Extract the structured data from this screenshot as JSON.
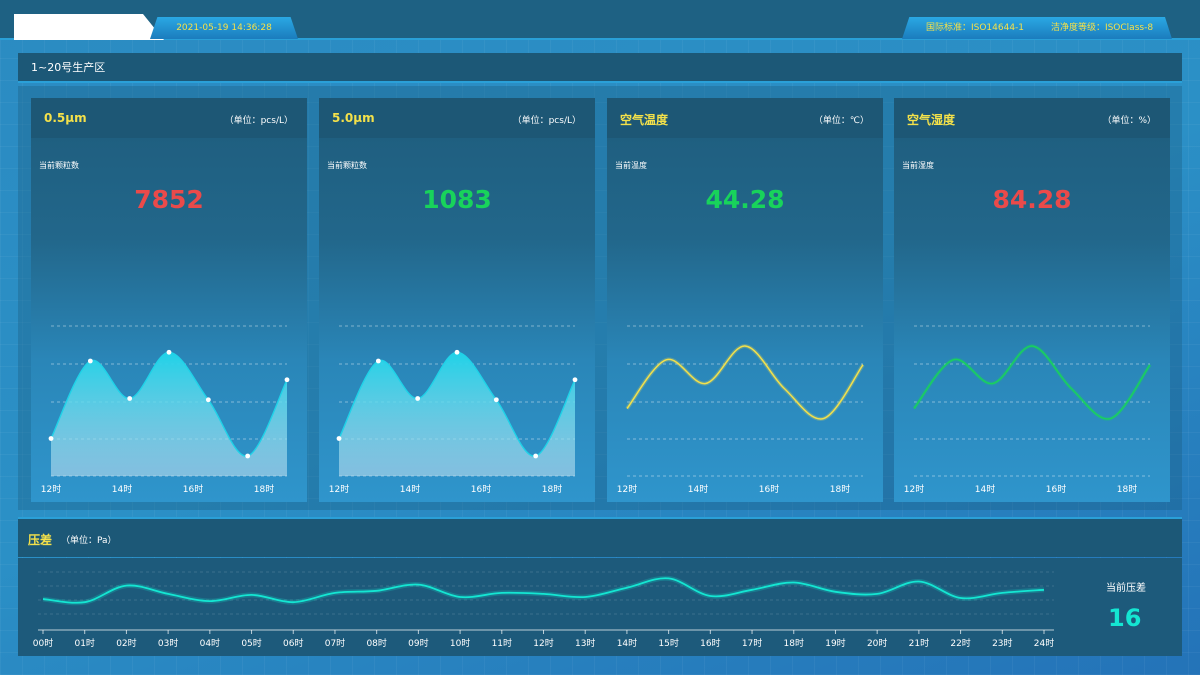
{
  "header": {
    "datetime": "2021-05-19 14:36:28",
    "standard": "国际标准：ISO14644-1",
    "clean_class": "洁净度等级：ISOClass-8"
  },
  "zone": {
    "title": "1~20号生产区"
  },
  "colors": {
    "yellow": "#f4e14a",
    "red": "#ea4a4a",
    "green": "#18d35b",
    "cyan": "#14e6d2",
    "area_cyan": "#1fd2e8"
  },
  "cards": [
    {
      "title": "0.5μm",
      "unit": "（单位：pcs/L）",
      "label": "当前颗粒数",
      "value": "7852",
      "value_color": "#ea4a4a",
      "style": "area"
    },
    {
      "title": "5.0μm",
      "unit": "（单位：pcs/L）",
      "label": "当前颗粒数",
      "value": "1083",
      "value_color": "#18d35b",
      "style": "area"
    },
    {
      "title": "空气温度",
      "unit": "（单位：℃）",
      "label": "当前温度",
      "value": "44.28",
      "value_color": "#18d35b",
      "style": "line",
      "line_color": "#f4e14a"
    },
    {
      "title": "空气湿度",
      "unit": "（单位：%）",
      "label": "当前湿度",
      "value": "84.28",
      "value_color": "#ea4a4a",
      "style": "line",
      "line_color": "#18d35b"
    }
  ],
  "chart_data": [
    {
      "type": "area",
      "series": [
        {
          "values": [
            30,
            92,
            62,
            99,
            61,
            16,
            77
          ]
        }
      ],
      "x_ticks": [
        "12时",
        "14时",
        "16时",
        "18时"
      ],
      "ylim": [
        0,
        120
      ]
    },
    {
      "type": "area",
      "series": [
        {
          "values": [
            30,
            92,
            62,
            99,
            61,
            16,
            77
          ]
        }
      ],
      "x_ticks": [
        "12时",
        "14时",
        "16时",
        "18时"
      ],
      "ylim": [
        0,
        120
      ]
    },
    {
      "type": "line",
      "series": [
        {
          "values": [
            54,
            93,
            74,
            104,
            70,
            46,
            89
          ]
        }
      ],
      "x_ticks": [
        "12时",
        "14时",
        "16时",
        "18时"
      ],
      "ylim": [
        0,
        120
      ]
    },
    {
      "type": "line",
      "series": [
        {
          "values": [
            54,
            93,
            74,
            104,
            70,
            46,
            89
          ]
        }
      ],
      "x_ticks": [
        "12时",
        "14时",
        "16时",
        "18时"
      ],
      "ylim": [
        0,
        120
      ]
    },
    {
      "type": "line",
      "categories": [
        "00时",
        "01时",
        "02时",
        "03时",
        "04时",
        "05时",
        "06时",
        "07时",
        "08时",
        "09时",
        "10时",
        "11时",
        "12时",
        "13时",
        "14时",
        "15时",
        "16时",
        "17时",
        "18时",
        "19时",
        "20时",
        "21时",
        "22时",
        "23时",
        "24时"
      ],
      "series": [
        {
          "values": [
            28,
            25,
            41,
            33,
            26,
            32,
            25,
            34,
            36,
            42,
            30,
            34,
            33,
            30,
            39,
            48,
            31,
            37,
            44,
            35,
            33,
            45,
            29,
            34,
            37
          ]
        }
      ],
      "ylim": [
        0,
        60
      ]
    }
  ],
  "pressure": {
    "title": "压差",
    "unit": "（单位：Pa）",
    "label": "当前压差",
    "value": "16"
  }
}
